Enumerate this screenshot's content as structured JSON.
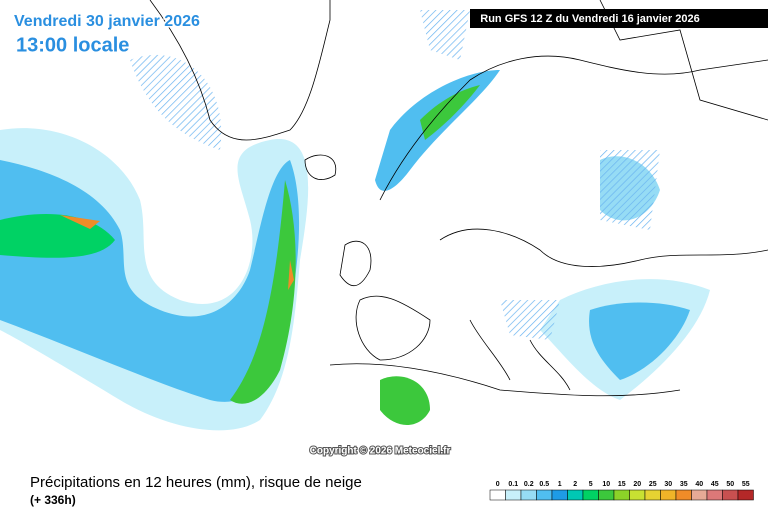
{
  "header": {
    "date": "Vendredi 30 janvier 2026",
    "time": "13:00 locale",
    "run": "Run GFS 12 Z du Vendredi 16 janvier 2026"
  },
  "copyright": "Copyright © 2026 Meteociel.fr",
  "footer": {
    "title": "Précipitations en 12 heures (mm), risque de neige",
    "lead": "(+ 336h)"
  },
  "legend": [
    {
      "label": "0",
      "color": "#ffffff"
    },
    {
      "label": "0.1",
      "color": "#c8f0fa"
    },
    {
      "label": "0.2",
      "color": "#96dcf5"
    },
    {
      "label": "0.5",
      "color": "#50bef0"
    },
    {
      "label": "1",
      "color": "#1e9be6"
    },
    {
      "label": "2",
      "color": "#00c8b4"
    },
    {
      "label": "5",
      "color": "#00d264"
    },
    {
      "label": "10",
      "color": "#3cc83c"
    },
    {
      "label": "15",
      "color": "#8cd228"
    },
    {
      "label": "20",
      "color": "#c8e132"
    },
    {
      "label": "25",
      "color": "#e6d232"
    },
    {
      "label": "30",
      "color": "#f0b428"
    },
    {
      "label": "35",
      "color": "#f08c28"
    },
    {
      "label": "40",
      "color": "#e6aa96"
    },
    {
      "label": "45",
      "color": "#dc7878"
    },
    {
      "label": "50",
      "color": "#c85050"
    },
    {
      "label": "55",
      "color": "#b42828"
    }
  ]
}
